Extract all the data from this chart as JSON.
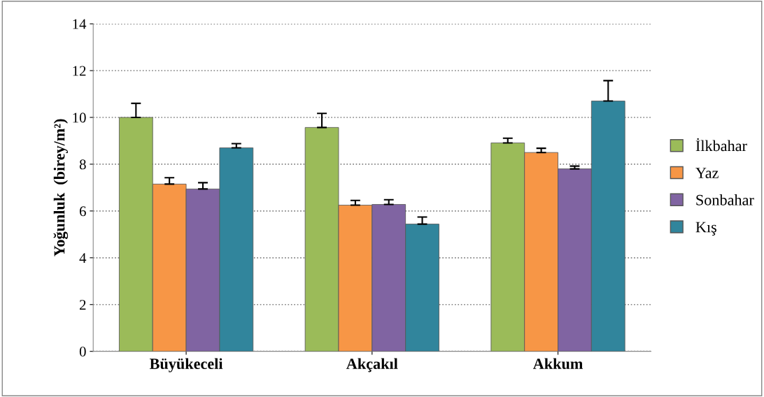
{
  "chart_data": {
    "type": "bar",
    "ylabel": "Yoğunluk  (birey/m²)",
    "categories": [
      "Büyükeceli",
      "Akçakıl",
      "Akkum"
    ],
    "series": [
      {
        "name": "İlkbahar",
        "color": "#9bbb59",
        "values": [
          10.0,
          9.57,
          8.91
        ],
        "errors": [
          0.6,
          0.6,
          0.2
        ]
      },
      {
        "name": "Yaz",
        "color": "#f79646",
        "values": [
          7.15,
          6.25,
          8.5
        ],
        "errors": [
          0.27,
          0.2,
          0.18
        ]
      },
      {
        "name": "Sonbahar",
        "color": "#8064a2",
        "values": [
          6.94,
          6.28,
          7.8
        ],
        "errors": [
          0.27,
          0.2,
          0.12
        ]
      },
      {
        "name": "Kış",
        "color": "#31859c",
        "values": [
          8.7,
          5.44,
          10.7
        ],
        "errors": [
          0.18,
          0.3,
          0.87
        ]
      }
    ],
    "ylim": [
      0,
      14
    ],
    "yticks": [
      0,
      2,
      4,
      6,
      8,
      10,
      12,
      14
    ],
    "grid": "y",
    "legend": "right"
  }
}
